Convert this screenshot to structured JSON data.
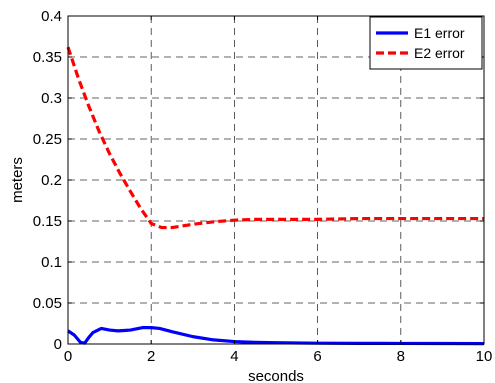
{
  "chart_data": {
    "type": "line",
    "title": "",
    "xlabel": "seconds",
    "ylabel": "meters",
    "xlim": [
      0,
      10
    ],
    "ylim": [
      0,
      0.4
    ],
    "xticks": [
      "0",
      "2",
      "4",
      "6",
      "8",
      "10"
    ],
    "yticks": [
      "0",
      "0.05",
      "0.1",
      "0.15",
      "0.2",
      "0.25",
      "0.3",
      "0.35",
      "0.4"
    ],
    "grid": true,
    "legend_position": "top-right",
    "series": [
      {
        "name": "E1 error",
        "color": "#0000ff",
        "style": "solid",
        "x": [
          0,
          0.15,
          0.3,
          0.4,
          0.5,
          0.6,
          0.8,
          1.0,
          1.2,
          1.5,
          1.8,
          2.0,
          2.2,
          2.5,
          3.0,
          3.5,
          4.0,
          4.5,
          5.0,
          6.0,
          7.0,
          8.0,
          9.0,
          10.0
        ],
        "y": [
          0.016,
          0.011,
          0.002,
          0.001,
          0.008,
          0.014,
          0.019,
          0.017,
          0.016,
          0.017,
          0.02,
          0.02,
          0.019,
          0.015,
          0.009,
          0.005,
          0.003,
          0.002,
          0.0015,
          0.001,
          0.0008,
          0.0007,
          0.0006,
          0.0005
        ]
      },
      {
        "name": "E2 error",
        "color": "#ff0000",
        "style": "dashed",
        "x": [
          0,
          0.25,
          0.5,
          0.75,
          1.0,
          1.25,
          1.5,
          1.75,
          2.0,
          2.25,
          2.5,
          2.75,
          3.0,
          3.5,
          4.0,
          4.5,
          5.0,
          6.0,
          7.0,
          8.0,
          9.0,
          10.0
        ],
        "y": [
          0.362,
          0.324,
          0.29,
          0.259,
          0.232,
          0.208,
          0.186,
          0.165,
          0.147,
          0.142,
          0.142,
          0.144,
          0.146,
          0.149,
          0.151,
          0.152,
          0.152,
          0.152,
          0.153,
          0.153,
          0.153,
          0.153
        ]
      }
    ]
  }
}
